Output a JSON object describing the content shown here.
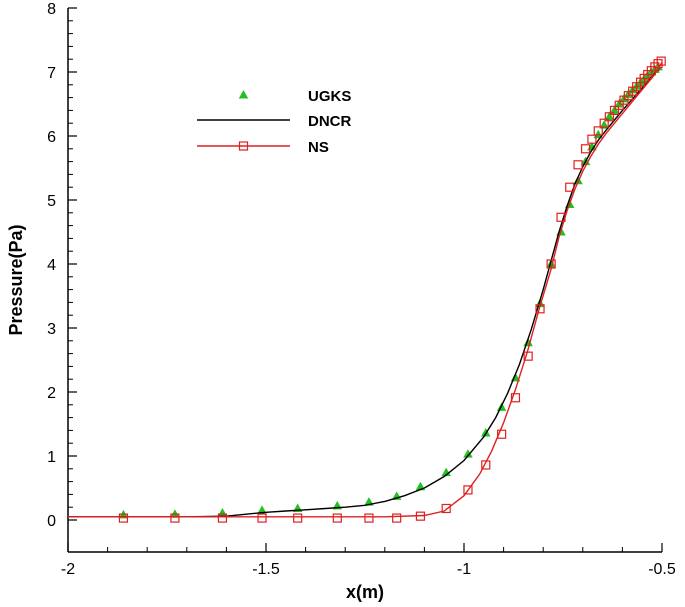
{
  "chart_data": {
    "type": "line",
    "title": "",
    "xlabel": "x(m)",
    "ylabel": "Pressure(Pa)",
    "xlim": [
      -2,
      -0.5
    ],
    "ylim": [
      -0.5,
      8
    ],
    "xticks": [
      -2,
      -1.5,
      -1,
      -0.5
    ],
    "xtick_labels": [
      "-2",
      "-1.5",
      "-1",
      "-0.5"
    ],
    "yticks": [
      0,
      1,
      2,
      3,
      4,
      5,
      6,
      7,
      8
    ],
    "ytick_labels": [
      "0",
      "1",
      "2",
      "3",
      "4",
      "5",
      "6",
      "7",
      "8"
    ],
    "grid": false,
    "legend_position": "top-left",
    "series": [
      {
        "name": "UGKS",
        "style": "markers",
        "marker": "filled-triangle",
        "color": "#22c022",
        "x": [
          -1.86,
          -1.73,
          -1.61,
          -1.51,
          -1.42,
          -1.32,
          -1.24,
          -1.17,
          -1.11,
          -1.045,
          -0.99,
          -0.945,
          -0.905,
          -0.87,
          -0.838,
          -0.808,
          -0.78,
          -0.755,
          -0.733,
          -0.712,
          -0.693,
          -0.677,
          -0.661,
          -0.646,
          -0.633,
          -0.62,
          -0.608,
          -0.596,
          -0.585,
          -0.574,
          -0.564,
          -0.554,
          -0.545,
          -0.536,
          -0.527,
          -0.518,
          -0.51
        ],
        "y": [
          0.08,
          0.09,
          0.11,
          0.15,
          0.18,
          0.22,
          0.28,
          0.37,
          0.52,
          0.74,
          1.03,
          1.36,
          1.76,
          2.22,
          2.77,
          3.38,
          4.0,
          4.5,
          4.93,
          5.3,
          5.6,
          5.83,
          6.02,
          6.17,
          6.3,
          6.4,
          6.5,
          6.58,
          6.65,
          6.72,
          6.78,
          6.84,
          6.89,
          6.95,
          7.0,
          7.04,
          7.08
        ]
      },
      {
        "name": "DNCR",
        "style": "line",
        "color": "#000000",
        "x": [
          -2.0,
          -1.7,
          -1.6,
          -1.55,
          -1.5,
          -1.45,
          -1.4,
          -1.35,
          -1.3,
          -1.25,
          -1.2,
          -1.15,
          -1.1,
          -1.05,
          -1.0,
          -0.95,
          -0.92,
          -0.89,
          -0.86,
          -0.83,
          -0.8,
          -0.78,
          -0.76,
          -0.74,
          -0.72,
          -0.7,
          -0.68,
          -0.66,
          -0.64,
          -0.62,
          -0.6,
          -0.58,
          -0.56,
          -0.54,
          -0.52,
          -0.505
        ],
        "y": [
          0.05,
          0.05,
          0.06,
          0.09,
          0.12,
          0.14,
          0.16,
          0.18,
          0.2,
          0.23,
          0.29,
          0.38,
          0.5,
          0.68,
          0.93,
          1.3,
          1.6,
          1.98,
          2.43,
          2.98,
          3.6,
          4.05,
          4.5,
          4.9,
          5.25,
          5.52,
          5.75,
          5.94,
          6.1,
          6.25,
          6.4,
          6.54,
          6.68,
          6.82,
          6.97,
          7.08
        ]
      },
      {
        "name": "NS",
        "style": "line-markers",
        "marker": "open-square",
        "color": "#e02020",
        "x": [
          -2.0,
          -1.2,
          -1.1,
          -1.05,
          -1.0,
          -0.96,
          -0.93,
          -0.9,
          -0.87,
          -0.84,
          -0.81,
          -0.78,
          -0.76,
          -0.74,
          -0.72,
          -0.7,
          -0.68,
          -0.66,
          -0.64,
          -0.62,
          -0.6,
          -0.58,
          -0.56,
          -0.54,
          -0.52,
          -0.5
        ],
        "y": [
          0.05,
          0.05,
          0.07,
          0.14,
          0.38,
          0.72,
          1.08,
          1.52,
          2.04,
          2.63,
          3.3,
          3.92,
          4.42,
          4.83,
          5.17,
          5.45,
          5.68,
          5.88,
          6.05,
          6.2,
          6.35,
          6.5,
          6.65,
          6.8,
          6.95,
          7.15
        ],
        "marker_x": [
          -1.86,
          -1.73,
          -1.61,
          -1.51,
          -1.42,
          -1.32,
          -1.24,
          -1.17,
          -1.11,
          -1.045,
          -0.99,
          -0.945,
          -0.905,
          -0.87,
          -0.838,
          -0.808,
          -0.78,
          -0.755,
          -0.733,
          -0.712,
          -0.693,
          -0.677,
          -0.661,
          -0.646,
          -0.633,
          -0.62,
          -0.608,
          -0.596,
          -0.585,
          -0.574,
          -0.564,
          -0.554,
          -0.545,
          -0.536,
          -0.527,
          -0.518,
          -0.51,
          -0.502
        ],
        "marker_y": [
          0.03,
          0.03,
          0.03,
          0.03,
          0.03,
          0.03,
          0.03,
          0.03,
          0.06,
          0.18,
          0.47,
          0.86,
          1.34,
          1.91,
          2.56,
          3.3,
          4.0,
          4.73,
          5.2,
          5.55,
          5.8,
          5.95,
          6.08,
          6.2,
          6.3,
          6.4,
          6.48,
          6.56,
          6.63,
          6.7,
          6.77,
          6.84,
          6.9,
          6.96,
          7.02,
          7.08,
          7.13,
          7.17
        ]
      }
    ]
  }
}
